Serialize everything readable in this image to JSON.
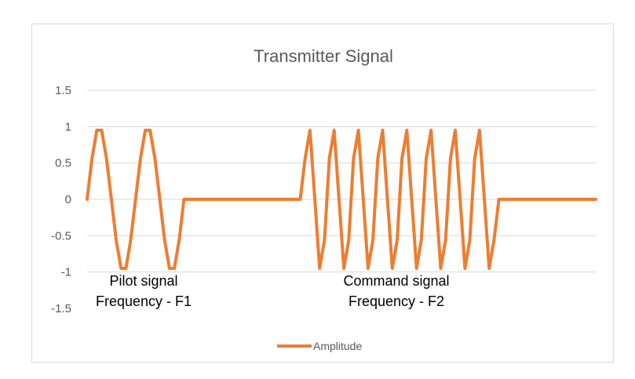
{
  "chart_data": {
    "type": "line",
    "title": "Transmitter Signal",
    "xlabel": "",
    "ylabel": "",
    "ylim": [
      -1.5,
      1.5
    ],
    "yticks": [
      "1.5",
      "1",
      "0.5",
      "0",
      "-0.5",
      "-1",
      "-1.5"
    ],
    "grid": true,
    "legend_position": "bottom",
    "series": [
      {
        "name": "Amplitude",
        "color": "#ED7D31",
        "values": [
          0,
          0.56,
          0.95,
          0.95,
          0.56,
          0,
          -0.56,
          -0.95,
          -0.95,
          -0.56,
          0,
          0.56,
          0.95,
          0.95,
          0.56,
          0,
          -0.56,
          -0.95,
          -0.95,
          -0.56,
          0,
          0,
          0,
          0,
          0,
          0,
          0,
          0,
          0,
          0,
          0,
          0,
          0,
          0,
          0,
          0,
          0,
          0,
          0,
          0,
          0,
          0,
          0,
          0,
          0,
          0.56,
          0.95,
          0,
          -0.95,
          -0.56,
          0.56,
          0.95,
          0,
          -0.95,
          -0.56,
          0.56,
          0.95,
          0,
          -0.95,
          -0.56,
          0.56,
          0.95,
          0,
          -0.95,
          -0.56,
          0.56,
          0.95,
          0,
          -0.95,
          -0.56,
          0.56,
          0.95,
          0,
          -0.95,
          -0.56,
          0.56,
          0.95,
          0,
          -0.95,
          -0.56,
          0.56,
          0.95,
          0,
          -0.95,
          -0.56,
          0,
          0,
          0,
          0,
          0,
          0,
          0,
          0,
          0,
          0,
          0,
          0,
          0,
          0,
          0,
          0,
          0,
          0,
          0,
          0,
          0
        ]
      }
    ],
    "annotations": [
      {
        "lines": [
          "Pilot signal",
          "Frequency - F1"
        ]
      },
      {
        "lines": [
          "Command signal",
          "Frequency - F2"
        ]
      }
    ]
  }
}
